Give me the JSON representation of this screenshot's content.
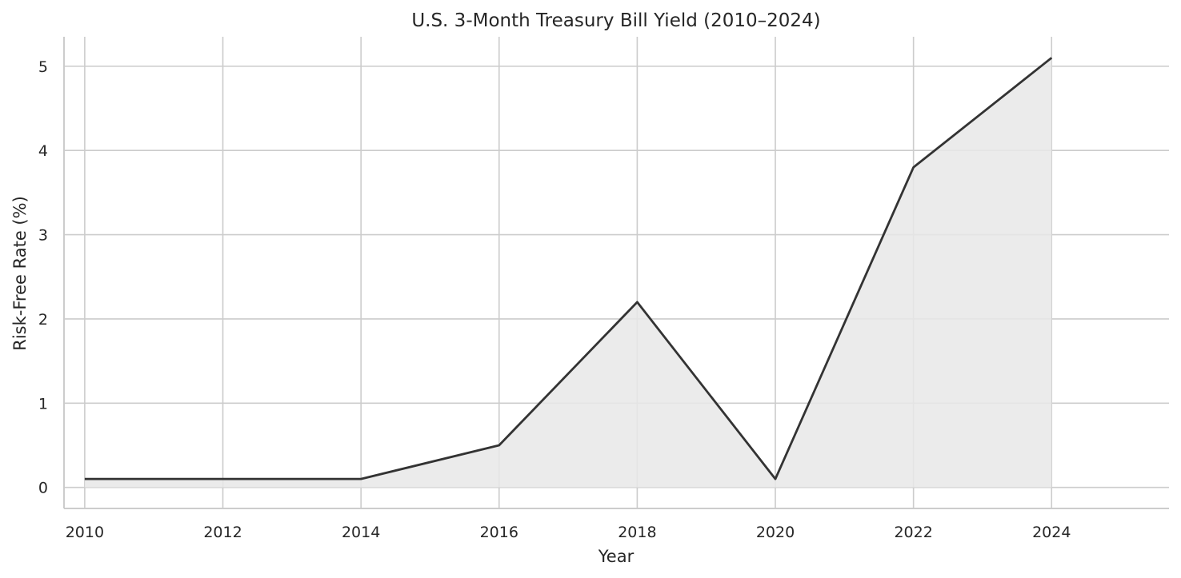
{
  "chart_data": {
    "type": "area",
    "title": "U.S. 3-Month Treasury Bill Yield (2010–2024)",
    "xlabel": "Year",
    "ylabel": "Risk-Free Rate (%)",
    "x": [
      2010,
      2012,
      2014,
      2016,
      2018,
      2020,
      2022,
      2024
    ],
    "series": [
      {
        "values": [
          0.1,
          0.1,
          0.1,
          0.5,
          2.2,
          0.1,
          3.8,
          5.1
        ]
      }
    ],
    "xticks": [
      "2010",
      "2012",
      "2014",
      "2016",
      "2018",
      "2020",
      "2022",
      "2024"
    ],
    "yticks": [
      "0",
      "1",
      "2",
      "3",
      "4",
      "5"
    ],
    "xlim": [
      2009.7,
      2025.7
    ],
    "ylim": [
      -0.25,
      5.35
    ],
    "grid": true,
    "line_color": "#333333",
    "fill_color": "#e8e8e8"
  }
}
